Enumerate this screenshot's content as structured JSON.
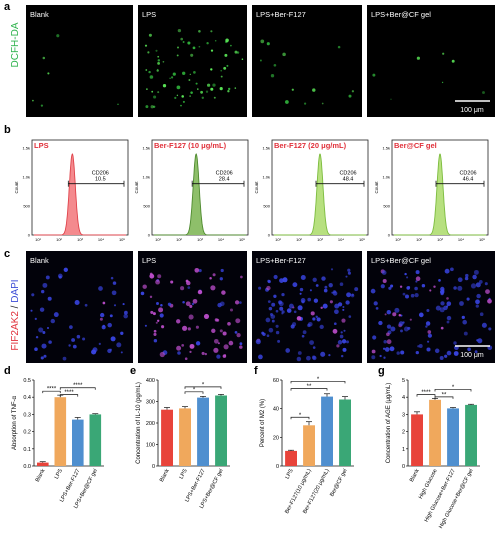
{
  "figure": {
    "panel_a": {
      "letter": "a",
      "side_label": "DCFH-DA",
      "images": [
        {
          "label": "Blank",
          "dots": 6
        },
        {
          "label": "LPS",
          "dots": 75
        },
        {
          "label": "LPS+Ber-F127",
          "dots": 14
        },
        {
          "label": "LPS+Ber@CF gel",
          "dots": 7
        }
      ],
      "scale_bar": "100 μm"
    },
    "panel_b": {
      "letter": "b",
      "histograms": [
        {
          "title": "LPS",
          "gate": "CD206",
          "value": "10.5",
          "fill": "#f48a8e",
          "stroke": "#e0434b",
          "peak_x": 0.42
        },
        {
          "title": "Ber-F127 (10 μg/mL)",
          "gate": "CD206",
          "value": "28.4",
          "fill": "#8ebf6a",
          "stroke": "#4e8a2e",
          "peak_x": 0.46
        },
        {
          "title": "Ber-F127 (20 μg/mL)",
          "gate": "CD206",
          "value": "48.4",
          "fill": "#b7e07f",
          "stroke": "#7cbc3e",
          "peak_x": 0.5
        },
        {
          "title": "Ber@CF gel",
          "gate": "CD206",
          "value": "46.4",
          "fill": "#b7e07f",
          "stroke": "#7cbc3e",
          "peak_x": 0.5
        }
      ],
      "y_axis_label": "Count",
      "y_ticks": [
        "1.5k",
        "1.0k",
        "500",
        "0"
      ],
      "x_ticks": [
        "10¹",
        "10²",
        "10³",
        "10⁴",
        "10⁵"
      ]
    },
    "panel_c": {
      "letter": "c",
      "side_label_red": "FIF2AK2",
      "side_label_sep": " / ",
      "side_label_blue": "DAPI",
      "images": [
        {
          "label": "Blank",
          "dots": 55,
          "pink": 0.05
        },
        {
          "label": "LPS",
          "dots": 85,
          "pink": 0.7
        },
        {
          "label": "LPS+Ber-F127",
          "dots": 110,
          "pink": 0.1
        },
        {
          "label": "LPS+Ber@CF gel",
          "dots": 120,
          "pink": 0.15
        }
      ],
      "scale_bar": "100 μm"
    },
    "colors": {
      "red": "#e8433a",
      "orange": "#f0a85c",
      "blue": "#4f8fcf",
      "green": "#3aa776"
    }
  },
  "chart_data": [
    {
      "panel": "d",
      "type": "bar",
      "categories": [
        "Blank",
        "LPS",
        "LPS+Ber-F127",
        "LPS+Ber@CF gel"
      ],
      "values": [
        0.02,
        0.4,
        0.27,
        0.3
      ],
      "errors": [
        0.005,
        0.012,
        0.012,
        0.004
      ],
      "ylabel": "Absorption of TNF-α",
      "ylim": [
        0,
        0.5
      ],
      "yticks": [
        "0.0",
        "0.1",
        "0.2",
        "0.3",
        "0.4",
        "0.5"
      ],
      "significance": [
        {
          "from": 0,
          "to": 1,
          "label": "****",
          "level": 0.435
        },
        {
          "from": 1,
          "to": 2,
          "label": "****",
          "level": 0.415
        },
        {
          "from": 1,
          "to": 3,
          "label": "****",
          "level": 0.455
        }
      ]
    },
    {
      "panel": "e",
      "type": "bar",
      "categories": [
        "Blank",
        "LPS",
        "LPS+Ber-F127",
        "LPS+Ber@CF gel"
      ],
      "values": [
        262,
        268,
        318,
        328
      ],
      "errors": [
        10,
        8,
        6,
        5
      ],
      "ylabel": "Concentration of IL-10 (pg/mL)",
      "ylim": [
        0,
        400
      ],
      "yticks": [
        "0",
        "100",
        "200",
        "300",
        "400"
      ],
      "significance": [
        {
          "from": 1,
          "to": 2,
          "label": "*",
          "level": 345
        },
        {
          "from": 1,
          "to": 3,
          "label": "*",
          "level": 368
        }
      ]
    },
    {
      "panel": "f",
      "type": "bar",
      "categories": [
        "LPS",
        "Ber-F127(10 μg/mL)",
        "Ber-F127(20 μg/mL)",
        "Ber@CF gel"
      ],
      "values": [
        10.5,
        28.4,
        48.4,
        46.4
      ],
      "errors": [
        0.5,
        2.5,
        2.0,
        2.0
      ],
      "ylabel": "Percent of M2 (%)",
      "ylim": [
        0,
        60
      ],
      "yticks": [
        "0",
        "20",
        "40",
        "60"
      ],
      "significance": [
        {
          "from": 0,
          "to": 1,
          "label": "*",
          "level": 34
        },
        {
          "from": 0,
          "to": 2,
          "label": "**",
          "level": 54
        },
        {
          "from": 0,
          "to": 3,
          "label": "*",
          "level": 59
        }
      ]
    },
    {
      "panel": "g",
      "type": "bar",
      "categories": [
        "Blank",
        "High Glucose",
        "High Glucose+Ber-F127",
        "High Glucose+Ber@CF gel"
      ],
      "values": [
        3.0,
        3.85,
        3.35,
        3.55
      ],
      "errors": [
        0.15,
        0.08,
        0.05,
        0.04
      ],
      "ylabel": "Concentration of AGE (μg/mL)",
      "ylim": [
        0,
        5
      ],
      "yticks": [
        "0",
        "1",
        "2",
        "3",
        "4",
        "5"
      ],
      "significance": [
        {
          "from": 0,
          "to": 1,
          "label": "****",
          "level": 4.15
        },
        {
          "from": 1,
          "to": 2,
          "label": "**",
          "level": 4.02
        },
        {
          "from": 1,
          "to": 3,
          "label": "*",
          "level": 4.45
        }
      ]
    }
  ]
}
